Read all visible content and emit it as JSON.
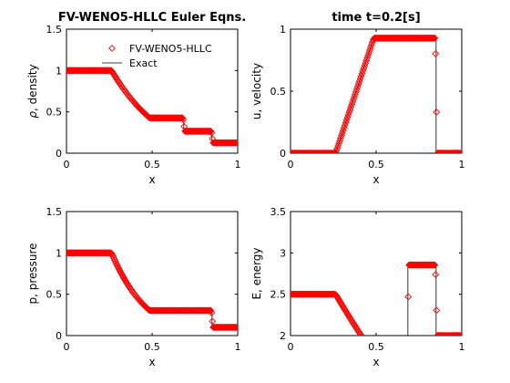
{
  "figure": {
    "left_title": "FV-WENO5-HLLC Euler Eqns.",
    "right_title": "time t=0.2[s]"
  },
  "colors": {
    "marker": "#ff0000",
    "exact": "#000000",
    "axes": "#000000"
  },
  "chart_data": [
    {
      "type": "line",
      "id": "density",
      "title": "FV-WENO5-HLLC Euler Eqns.",
      "xlabel": "x",
      "ylabel_prefix": "ρ",
      "ylabel": ", density",
      "xlim": [
        0,
        1
      ],
      "ylim": [
        0,
        1.5
      ],
      "xticks": [
        0,
        0.5,
        1
      ],
      "yticks": [
        0,
        0.5,
        1,
        1.5
      ],
      "xtick_labels": [
        "0",
        "0.5",
        "1"
      ],
      "ytick_labels": [
        "0",
        "0.5",
        "1",
        "1.5"
      ],
      "legend": {
        "position": "top-right",
        "entries": [
          "FV-WENO5-HLLC",
          "Exact"
        ]
      },
      "series": [
        {
          "name": "FV-WENO5-HLLC",
          "style": "markers",
          "source": "numerical"
        },
        {
          "name": "Exact",
          "style": "line",
          "source": "exact"
        }
      ]
    },
    {
      "type": "line",
      "id": "velocity",
      "title": "time t=0.2[s]",
      "xlabel": "x",
      "ylabel": "u, velocity",
      "xlim": [
        0,
        1
      ],
      "ylim": [
        0,
        1
      ],
      "xticks": [
        0,
        0.5,
        1
      ],
      "yticks": [
        0,
        0.5,
        1
      ],
      "xtick_labels": [
        "0",
        "0.5",
        "1"
      ],
      "ytick_labels": [
        "0",
        "0.5",
        "1"
      ],
      "series": [
        {
          "style": "markers",
          "source": "numerical"
        },
        {
          "style": "line",
          "source": "exact"
        }
      ]
    },
    {
      "type": "line",
      "id": "pressure",
      "title": "",
      "xlabel": "x",
      "ylabel": "p, pressure",
      "xlim": [
        0,
        1
      ],
      "ylim": [
        0,
        1.5
      ],
      "xticks": [
        0,
        0.5,
        1
      ],
      "yticks": [
        0,
        0.5,
        1,
        1.5
      ],
      "xtick_labels": [
        "0",
        "0.5",
        "1"
      ],
      "ytick_labels": [
        "0",
        "0.5",
        "1",
        "1.5"
      ],
      "series": [
        {
          "style": "markers",
          "source": "numerical"
        },
        {
          "style": "line",
          "source": "exact"
        }
      ]
    },
    {
      "type": "line",
      "id": "energy",
      "title": "",
      "xlabel": "x",
      "ylabel": "E, energy",
      "xlim": [
        0,
        1
      ],
      "ylim": [
        2,
        3.5
      ],
      "xticks": [
        0,
        0.5,
        1
      ],
      "yticks": [
        2,
        2.5,
        3,
        3.5
      ],
      "xtick_labels": [
        "0",
        "0.5",
        "1"
      ],
      "ytick_labels": [
        "2",
        "2.5",
        "3",
        "3.5"
      ],
      "series": [
        {
          "style": "markers",
          "source": "numerical"
        },
        {
          "style": "line",
          "source": "exact"
        }
      ]
    }
  ]
}
